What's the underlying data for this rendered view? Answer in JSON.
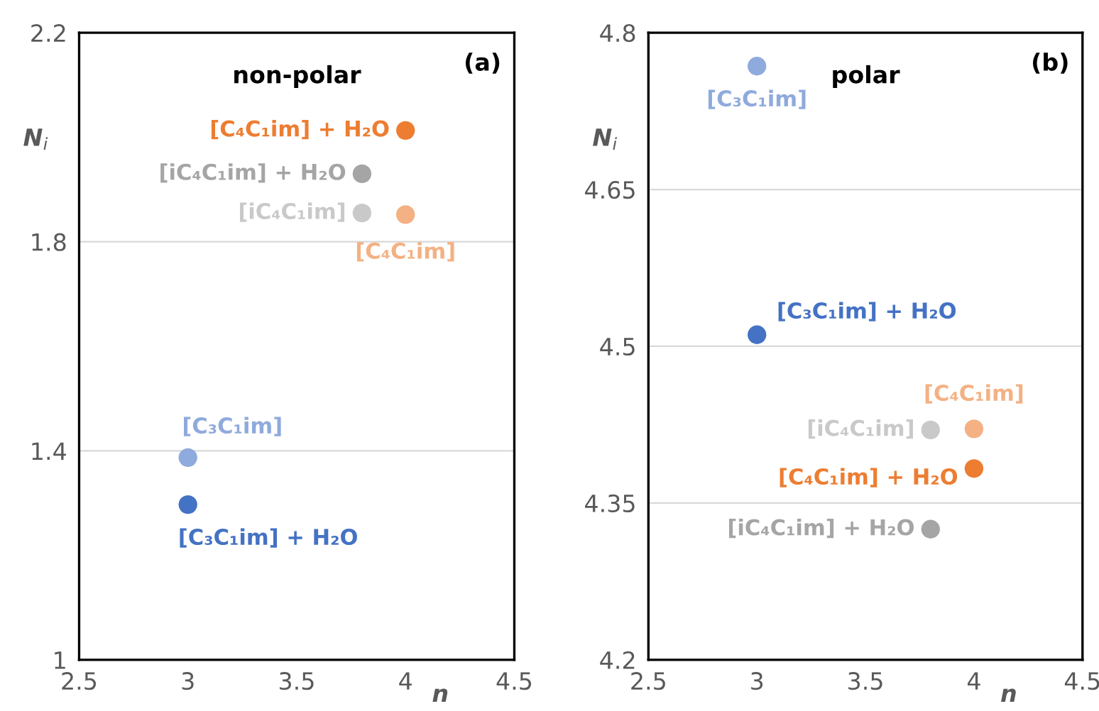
{
  "chart_data": [
    {
      "type": "scatter",
      "title": "non-polar",
      "xlabel": "n",
      "ylabel": "N$_{i}$",
      "annotations": [
        "(a)"
      ],
      "xlim": [
        2.5,
        4.5
      ],
      "xticks": [
        2.5,
        3,
        3.5,
        4,
        4.5
      ],
      "ylim": [
        1,
        2.2
      ],
      "yticks": [
        1,
        1.4,
        1.8,
        2.2
      ],
      "grid": "y",
      "marker": "circle",
      "legend": false,
      "series": [
        {
          "name": "[C₄C₁im] + H₂O",
          "color": "#ed7d31",
          "x": [
            4
          ],
          "values": [
            2.013
          ]
        },
        {
          "name": "[iC₄C₁im] + H₂O",
          "color": "#a5a5a5",
          "x": [
            3.8
          ],
          "values": [
            1.93
          ]
        },
        {
          "name": "[iC₄C₁im]",
          "color": "#c9c9c9",
          "x": [
            3.8
          ],
          "values": [
            1.855
          ]
        },
        {
          "name": "[C₄C₁im]",
          "color": "#f4b183",
          "x": [
            4
          ],
          "values": [
            1.852
          ]
        },
        {
          "name": "[C₃C₁im]",
          "color": "#8faadc",
          "x": [
            3
          ],
          "values": [
            1.387
          ]
        },
        {
          "name": "[C₃C₁im] + H₂O",
          "color": "#4472c4",
          "x": [
            3
          ],
          "values": [
            1.297
          ]
        }
      ]
    },
    {
      "type": "scatter",
      "title": "polar",
      "xlabel": "n",
      "ylabel": "N$_{i}$",
      "annotations": [
        "(b)"
      ],
      "xlim": [
        2.5,
        4.5
      ],
      "xticks": [
        2.5,
        3,
        3.5,
        4,
        4.5
      ],
      "ylim": [
        4.2,
        4.8
      ],
      "yticks": [
        4.2,
        4.35,
        4.5,
        4.65,
        4.8
      ],
      "grid": "y",
      "marker": "circle",
      "legend": false,
      "series": [
        {
          "name": "[C₃C₁im]",
          "color": "#8faadc",
          "x": [
            3
          ],
          "values": [
            4.768
          ]
        },
        {
          "name": "[C₃C₁im] + H₂O",
          "color": "#4472c4",
          "x": [
            3
          ],
          "values": [
            4.511
          ]
        },
        {
          "name": "[iC₄C₁im]",
          "color": "#c9c9c9",
          "x": [
            3.8
          ],
          "values": [
            4.42
          ]
        },
        {
          "name": "[C₄C₁im]",
          "color": "#f4b183",
          "x": [
            4
          ],
          "values": [
            4.421
          ]
        },
        {
          "name": "[C₄C₁im] + H₂O",
          "color": "#ed7d31",
          "x": [
            4
          ],
          "values": [
            4.383
          ]
        },
        {
          "name": "[iC₄C₁im] + H₂O",
          "color": "#a5a5a5",
          "x": [
            3.8
          ],
          "values": [
            4.325
          ]
        }
      ]
    }
  ]
}
